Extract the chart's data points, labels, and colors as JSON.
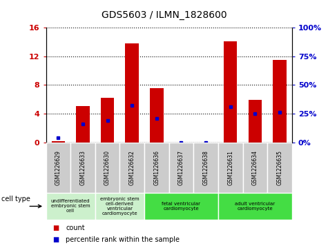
{
  "title": "GDS5603 / ILMN_1828600",
  "samples": [
    "GSM1226629",
    "GSM1226633",
    "GSM1226630",
    "GSM1226632",
    "GSM1226636",
    "GSM1226637",
    "GSM1226638",
    "GSM1226631",
    "GSM1226634",
    "GSM1226635"
  ],
  "counts": [
    0.15,
    5.1,
    6.2,
    13.8,
    7.6,
    0.0,
    0.0,
    14.1,
    5.9,
    11.5
  ],
  "percentile_pct": [
    4,
    16,
    19,
    32,
    21,
    0,
    0,
    31,
    25,
    26
  ],
  "ylim_left": [
    0,
    16
  ],
  "ylim_right": [
    0,
    100
  ],
  "yticks_left": [
    0,
    4,
    8,
    12,
    16
  ],
  "ytick_labels_left": [
    "0",
    "4",
    "8",
    "12",
    "16"
  ],
  "yticks_right": [
    0,
    25,
    50,
    75,
    100
  ],
  "ytick_labels_right": [
    "0%",
    "25%",
    "50%",
    "75%",
    "100%"
  ],
  "bar_color": "#cc0000",
  "dot_color": "#0000cc",
  "cell_type_groups": [
    {
      "label": "undifferentiated\nembryonic stem\ncell",
      "start": 0,
      "end": 2,
      "color": "#ccf0cc"
    },
    {
      "label": "embryonic stem\ncell-derived\nventricular\ncardiomyocyte",
      "start": 2,
      "end": 4,
      "color": "#ccf0cc"
    },
    {
      "label": "fetal ventricular\ncardiomyocyte",
      "start": 4,
      "end": 7,
      "color": "#44dd44"
    },
    {
      "label": "adult ventricular\ncardiomyocyte",
      "start": 7,
      "end": 10,
      "color": "#44dd44"
    }
  ],
  "cell_type_label": "cell type",
  "legend_count_label": "count",
  "legend_percentile_label": "percentile rank within the sample",
  "bar_width": 0.55,
  "background_color": "#ffffff",
  "plot_bg_color": "#ffffff",
  "table_bg_color": "#cccccc"
}
